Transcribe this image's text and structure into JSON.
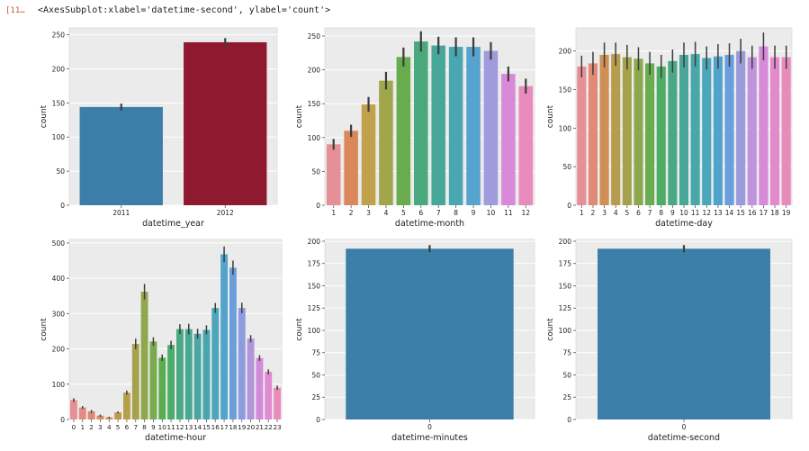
{
  "cell": {
    "prompt": "[11…",
    "output_text": "<AxesSubplot:xlabel='datetime-second', ylabel='count'>"
  },
  "chart_data": [
    {
      "type": "bar",
      "xlabel": "datetime_year",
      "ylabel": "count",
      "ylim": [
        0,
        260
      ],
      "yticks": [
        0,
        50,
        100,
        150,
        200,
        250
      ],
      "categories": [
        "2011",
        "2012"
      ],
      "values": [
        144,
        239
      ],
      "errors": [
        5,
        6
      ],
      "colors": [
        "#3b7fa8",
        "#8f1a2f"
      ]
    },
    {
      "type": "bar",
      "xlabel": "datetime-month",
      "ylabel": "count",
      "ylim": [
        0,
        262
      ],
      "yticks": [
        0,
        50,
        100,
        150,
        200,
        250
      ],
      "categories": [
        "1",
        "2",
        "3",
        "4",
        "5",
        "6",
        "7",
        "8",
        "9",
        "10",
        "11",
        "12"
      ],
      "values": [
        90,
        110,
        149,
        184,
        219,
        242,
        236,
        234,
        234,
        228,
        194,
        176
      ],
      "errors": [
        8,
        9,
        11,
        13,
        14,
        15,
        13,
        14,
        14,
        13,
        11,
        11
      ],
      "colors": [
        "#e58f96",
        "#db875c",
        "#c1a14c",
        "#9fa64c",
        "#68ac4e",
        "#4aa97c",
        "#47a89a",
        "#4aa7b1",
        "#55a4cf",
        "#9f9bdc",
        "#d88ad8",
        "#e98cbd"
      ]
    },
    {
      "type": "bar",
      "xlabel": "datetime-day",
      "ylabel": "count",
      "ylim": [
        0,
        230
      ],
      "yticks": [
        0,
        50,
        100,
        150,
        200
      ],
      "categories": [
        "1",
        "2",
        "3",
        "4",
        "5",
        "6",
        "7",
        "8",
        "9",
        "10",
        "11",
        "12",
        "13",
        "14",
        "15",
        "16",
        "17",
        "18",
        "19"
      ],
      "values": [
        180,
        184,
        195,
        196,
        192,
        190,
        184,
        180,
        187,
        195,
        196,
        191,
        193,
        195,
        200,
        192,
        206,
        192,
        192
      ],
      "errors": [
        14,
        15,
        16,
        15,
        16,
        15,
        15,
        15,
        15,
        16,
        16,
        15,
        16,
        15,
        16,
        15,
        18,
        15,
        15
      ],
      "colors": [
        "#e58f96",
        "#e08a77",
        "#d18f56",
        "#b89c4d",
        "#a4a34c",
        "#8ba84d",
        "#69ad4f",
        "#4ead64",
        "#4aa985",
        "#48a798",
        "#47a7a9",
        "#4aa6ba",
        "#50a4cc",
        "#6a9fdd",
        "#9b9bdc",
        "#bf93dd",
        "#d78ad8",
        "#e38acc",
        "#e98bba"
      ]
    },
    {
      "type": "bar",
      "xlabel": "datetime-hour",
      "ylabel": "count",
      "ylim": [
        0,
        510
      ],
      "yticks": [
        0,
        100,
        200,
        300,
        400,
        500
      ],
      "categories": [
        "0",
        "1",
        "2",
        "3",
        "4",
        "5",
        "6",
        "7",
        "8",
        "9",
        "10",
        "11",
        "12",
        "13",
        "14",
        "15",
        "16",
        "17",
        "18",
        "19",
        "20",
        "21",
        "22",
        "23"
      ],
      "values": [
        55,
        34,
        23,
        11,
        6,
        20,
        76,
        214,
        362,
        221,
        175,
        211,
        256,
        256,
        243,
        254,
        316,
        468,
        430,
        316,
        229,
        174,
        135,
        90
      ],
      "errors": [
        5,
        4,
        4,
        3,
        2,
        3,
        6,
        15,
        22,
        12,
        9,
        12,
        14,
        15,
        14,
        13,
        14,
        22,
        20,
        15,
        10,
        8,
        7,
        6
      ],
      "colors": [
        "#e58f96",
        "#e38b86",
        "#dd8874",
        "#d78b60",
        "#cd8f52",
        "#c1994e",
        "#b59f4c",
        "#a4a34c",
        "#91a74c",
        "#79ab4e",
        "#5aae50",
        "#4aad6b",
        "#49aa84",
        "#47a894",
        "#48a7a2",
        "#49a6af",
        "#4ca5bd",
        "#54a3cb",
        "#6a9fdb",
        "#8d9cdd",
        "#b095dd",
        "#d18bd9",
        "#e08ad0",
        "#e98bba"
      ]
    },
    {
      "type": "bar",
      "xlabel": "datetime-minutes",
      "ylabel": "count",
      "ylim": [
        0,
        202
      ],
      "yticks": [
        0,
        25,
        50,
        75,
        100,
        125,
        150,
        175,
        200
      ],
      "categories": [
        "0"
      ],
      "values": [
        191.6
      ],
      "errors": [
        4
      ],
      "colors": [
        "#3b7fa8"
      ]
    },
    {
      "type": "bar",
      "xlabel": "datetime-second",
      "ylabel": "count",
      "ylim": [
        0,
        202
      ],
      "yticks": [
        0,
        25,
        50,
        75,
        100,
        125,
        150,
        175,
        200
      ],
      "categories": [
        "0"
      ],
      "values": [
        191.6
      ],
      "errors": [
        4
      ],
      "colors": [
        "#3b7fa8"
      ]
    }
  ]
}
